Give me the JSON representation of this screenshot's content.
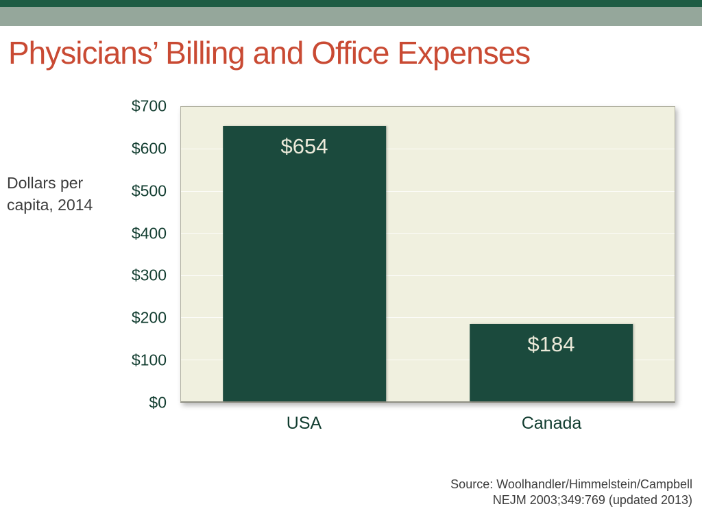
{
  "header": {
    "title": "Physicians’ Billing and Office Expenses"
  },
  "axis": {
    "ylabel_line1": "Dollars per",
    "ylabel_line2": "capita, 2014"
  },
  "footer": {
    "source_line1": "Source: Woolhandler/Himmelstein/Campbell",
    "source_line2": "NEJM 2003;349:769 (updated 2013)"
  },
  "colors": {
    "accent_dark": "#1e5c44",
    "accent_sage": "#95a79b",
    "title_red": "#c94a33",
    "bar_teal": "#1b4a3d",
    "plot_bg": "#f0f0df",
    "tick_text": "#123d30",
    "label_gray": "#3c3c3c",
    "bar_label_color": "#eceada"
  },
  "chart_data": {
    "type": "bar",
    "title": "Physicians’ Billing and Office Expenses",
    "categories": [
      "USA",
      "Canada"
    ],
    "values": [
      654,
      184
    ],
    "bar_labels": [
      "$654",
      "$184"
    ],
    "xlabel": "",
    "ylabel": "Dollars per capita, 2014",
    "ylim": [
      0,
      700
    ],
    "ytick_labels": [
      "$700",
      "$600",
      "$500",
      "$400",
      "$300",
      "$200",
      "$100",
      "$0"
    ],
    "gridlines": true,
    "legend": false,
    "source": "Source: Woolhandler/Himmelstein/Campbell NEJM 2003;349:769 (updated 2013)"
  }
}
